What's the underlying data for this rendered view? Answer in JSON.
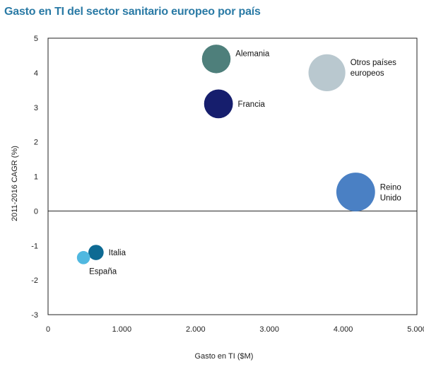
{
  "chart_data": {
    "type": "bubble",
    "title": "Gasto en TI del sector sanitario europeo por país",
    "xlabel": "Gasto en TI ($M)",
    "ylabel": "2011-2016 CAGR (%)",
    "xlim": [
      0,
      5000
    ],
    "ylim": [
      -3,
      5
    ],
    "xticks": [
      0,
      1000,
      2000,
      3000,
      4000,
      5000
    ],
    "xtick_labels": [
      "0",
      "1.000",
      "2.000",
      "3.000",
      "4.000",
      "5.000"
    ],
    "yticks": [
      5,
      4,
      3,
      2,
      1,
      0,
      -1,
      -2,
      -3
    ],
    "ytick_labels": [
      "5",
      "4",
      "3",
      "2",
      "1",
      "0",
      "-1",
      "-2",
      "-3"
    ],
    "grid": false,
    "points": [
      {
        "label": "Alemania",
        "x": 2280,
        "y": 4.4,
        "size": 2280,
        "color": "#4e7f7b"
      },
      {
        "label": "Francia",
        "x": 2310,
        "y": 3.1,
        "size": 2310,
        "color": "#161e6d"
      },
      {
        "label": "Otros países europeos",
        "label_lines": [
          "Otros países",
          "europeos"
        ],
        "x": 3780,
        "y": 4.0,
        "size": 3780,
        "color": "#b9c8cf"
      },
      {
        "label": "Reino Unido",
        "label_lines": [
          "Reino",
          "Unido"
        ],
        "x": 4170,
        "y": 0.55,
        "size": 4170,
        "color": "#4a80c4"
      },
      {
        "label": "Italia",
        "x": 650,
        "y": -1.2,
        "size": 650,
        "color": "#0e6a93"
      },
      {
        "label": "España",
        "x": 480,
        "y": -1.35,
        "size": 480,
        "color": "#50b8e0"
      }
    ]
  }
}
